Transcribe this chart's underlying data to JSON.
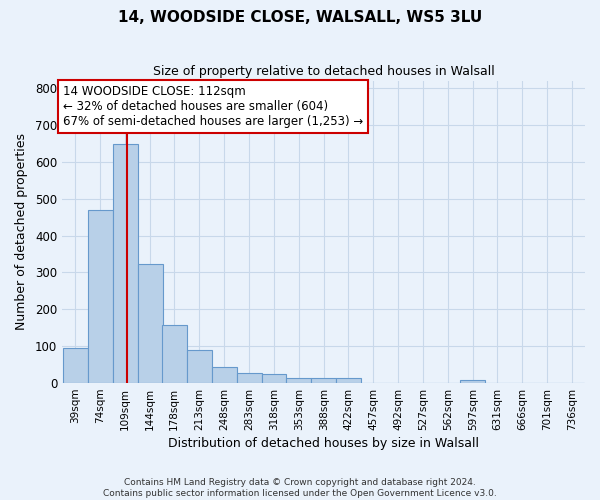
{
  "title": "14, WOODSIDE CLOSE, WALSALL, WS5 3LU",
  "subtitle": "Size of property relative to detached houses in Walsall",
  "xlabel": "Distribution of detached houses by size in Walsall",
  "ylabel": "Number of detached properties",
  "bar_labels": [
    "39sqm",
    "74sqm",
    "109sqm",
    "144sqm",
    "178sqm",
    "213sqm",
    "248sqm",
    "283sqm",
    "318sqm",
    "353sqm",
    "388sqm",
    "422sqm",
    "457sqm",
    "492sqm",
    "527sqm",
    "562sqm",
    "597sqm",
    "631sqm",
    "666sqm",
    "701sqm",
    "736sqm"
  ],
  "bar_values": [
    95,
    470,
    648,
    323,
    158,
    90,
    43,
    28,
    25,
    14,
    15,
    13,
    0,
    0,
    0,
    0,
    8,
    0,
    0,
    0,
    0
  ],
  "bar_color": "#b8d0e8",
  "bar_edge_color": "#6699cc",
  "property_line_x": 112,
  "annotation_line1": "14 WOODSIDE CLOSE: 112sqm",
  "annotation_line2": "← 32% of detached houses are smaller (604)",
  "annotation_line3": "67% of semi-detached houses are larger (1,253) →",
  "annotation_box_color": "#ffffff",
  "annotation_box_edge": "#cc0000",
  "vline_color": "#cc0000",
  "ylim": [
    0,
    820
  ],
  "yticks": [
    0,
    100,
    200,
    300,
    400,
    500,
    600,
    700,
    800
  ],
  "grid_color": "#c8d8ea",
  "bg_color": "#eaf2fb",
  "footer1": "Contains HM Land Registry data © Crown copyright and database right 2024.",
  "footer2": "Contains public sector information licensed under the Open Government Licence v3.0.",
  "bin_width": 35
}
